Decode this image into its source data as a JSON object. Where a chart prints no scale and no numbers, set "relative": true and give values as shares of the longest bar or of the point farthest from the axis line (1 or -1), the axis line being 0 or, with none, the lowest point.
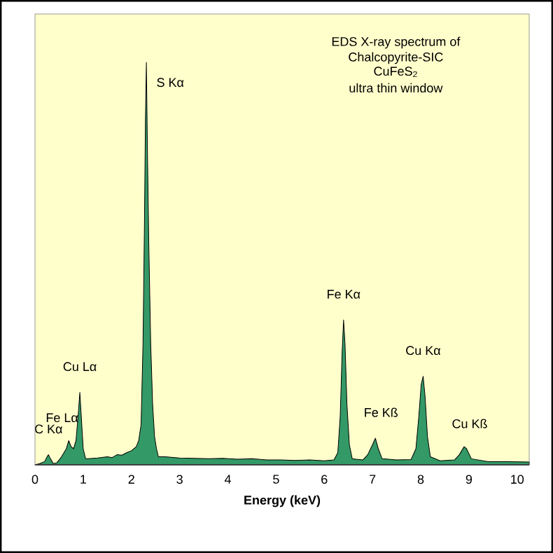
{
  "chart_data": {
    "type": "area",
    "relative": true,
    "title": "EDS X-ray spectrum of Chalcopyrite-SIC",
    "subtitle": "CuFeS$_{2}$",
    "xlabel": "Energy (keV)",
    "xlim": [
      0,
      10.25
    ],
    "xticks": [
      0,
      1,
      2,
      3,
      4,
      5,
      6,
      7,
      8,
      9,
      10
    ],
    "annotations": [
      "ultra thin window",
      {
        "text": "C Kα",
        "x": 0.28,
        "y": 0.025
      },
      {
        "text": "Fe Lα",
        "x": 0.7,
        "y": 0.06
      },
      {
        "text": "Cu Lα",
        "x": 0.93,
        "y": 0.18
      },
      {
        "text": "S Kα",
        "x": 2.31,
        "y": 1.0
      },
      {
        "text": "Fe Kα",
        "x": 6.4,
        "y": 0.36
      },
      {
        "text": "Fe Kß",
        "x": 7.06,
        "y": 0.066
      },
      {
        "text": "Cu Kα",
        "x": 8.05,
        "y": 0.22
      },
      {
        "text": "Cu Kß",
        "x": 8.9,
        "y": 0.045
      }
    ],
    "series": [
      {
        "color": "#339966",
        "x": [
          0,
          0.1,
          0.2,
          0.25,
          0.28,
          0.32,
          0.38,
          0.45,
          0.5,
          0.55,
          0.6,
          0.65,
          0.7,
          0.75,
          0.8,
          0.85,
          0.9,
          0.93,
          0.96,
          1.0,
          1.05,
          1.1,
          1.3,
          1.5,
          1.6,
          1.7,
          1.8,
          1.9,
          2.0,
          2.1,
          2.15,
          2.2,
          2.24,
          2.27,
          2.29,
          2.31,
          2.33,
          2.36,
          2.4,
          2.44,
          2.48,
          2.52,
          2.56,
          2.7,
          3.0,
          3.3,
          3.6,
          3.9,
          4.2,
          4.5,
          4.8,
          5.1,
          5.4,
          5.7,
          6.0,
          6.2,
          6.28,
          6.33,
          6.37,
          6.4,
          6.43,
          6.47,
          6.52,
          6.58,
          6.8,
          6.9,
          7.0,
          7.06,
          7.12,
          7.2,
          7.5,
          7.8,
          7.9,
          7.96,
          8.01,
          8.05,
          8.09,
          8.14,
          8.2,
          8.4,
          8.7,
          8.8,
          8.9,
          8.95,
          9.05,
          9.4,
          9.8,
          10.25
        ],
        "values": [
          0,
          0.003,
          0.008,
          0.02,
          0.025,
          0.015,
          0.003,
          0.005,
          0.012,
          0.02,
          0.03,
          0.04,
          0.06,
          0.045,
          0.04,
          0.06,
          0.13,
          0.18,
          0.12,
          0.04,
          0.015,
          0.015,
          0.017,
          0.02,
          0.018,
          0.025,
          0.024,
          0.03,
          0.035,
          0.045,
          0.06,
          0.1,
          0.3,
          0.6,
          0.85,
          1.0,
          0.8,
          0.55,
          0.3,
          0.15,
          0.07,
          0.04,
          0.02,
          0.02,
          0.017,
          0.016,
          0.015,
          0.016,
          0.014,
          0.015,
          0.012,
          0.012,
          0.011,
          0.012,
          0.01,
          0.012,
          0.03,
          0.12,
          0.28,
          0.36,
          0.3,
          0.15,
          0.05,
          0.015,
          0.012,
          0.025,
          0.05,
          0.066,
          0.04,
          0.015,
          0.012,
          0.013,
          0.04,
          0.12,
          0.2,
          0.22,
          0.17,
          0.07,
          0.02,
          0.01,
          0.012,
          0.025,
          0.045,
          0.04,
          0.015,
          0.008,
          0.008,
          0.007
        ]
      }
    ]
  }
}
